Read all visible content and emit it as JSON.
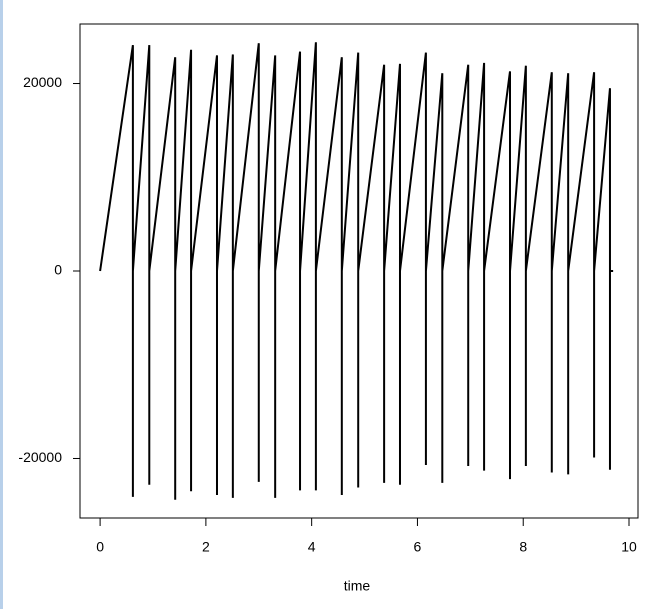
{
  "chart_data": {
    "type": "line",
    "x_label": "time",
    "color": "#000000",
    "x": [
      0,
      0.62,
      0.62,
      0.62,
      0.93,
      0.93,
      0.93,
      1.42,
      1.42,
      1.42,
      1.72,
      1.72,
      1.72,
      2.21,
      2.21,
      2.21,
      2.51,
      2.51,
      2.51,
      3.0,
      3.0,
      3.0,
      3.31,
      3.31,
      3.31,
      3.78,
      3.78,
      3.78,
      4.08,
      4.08,
      4.08,
      4.57,
      4.57,
      4.57,
      4.88,
      4.88,
      4.88,
      5.37,
      5.37,
      5.37,
      5.67,
      5.67,
      5.67,
      6.16,
      6.16,
      6.16,
      6.47,
      6.47,
      6.47,
      6.96,
      6.96,
      6.96,
      7.26,
      7.26,
      7.26,
      7.75,
      7.75,
      7.75,
      8.05,
      8.05,
      8.05,
      8.54,
      8.54,
      8.54,
      8.85,
      8.85,
      8.85,
      9.34,
      9.34,
      9.34,
      9.64,
      9.64,
      9.64,
      9.7
    ],
    "values": [
      0,
      24100,
      -24100,
      0,
      24100,
      -22800,
      0,
      22800,
      -24400,
      0,
      23600,
      -23500,
      0,
      23000,
      -23900,
      0,
      23100,
      -24200,
      0,
      24300,
      -22500,
      0,
      23000,
      -24200,
      0,
      23400,
      -23400,
      0,
      24400,
      -23400,
      0,
      22800,
      -23900,
      0,
      23300,
      -23100,
      0,
      22000,
      -22600,
      0,
      22100,
      -22800,
      0,
      23300,
      -20700,
      0,
      21100,
      -22600,
      0,
      22000,
      -20800,
      0,
      22200,
      -21300,
      0,
      21300,
      -22200,
      0,
      21900,
      -20800,
      0,
      21200,
      -21500,
      0,
      21100,
      -21700,
      0,
      21200,
      -19900,
      0,
      19500,
      -21200,
      0,
      0
    ],
    "xlim": [
      -0.38,
      10.17
    ],
    "ylim": [
      -26350,
      26350
    ],
    "xticks": [
      0,
      2,
      4,
      6,
      8,
      10
    ],
    "yticks": [
      -20000,
      0,
      20000
    ]
  }
}
